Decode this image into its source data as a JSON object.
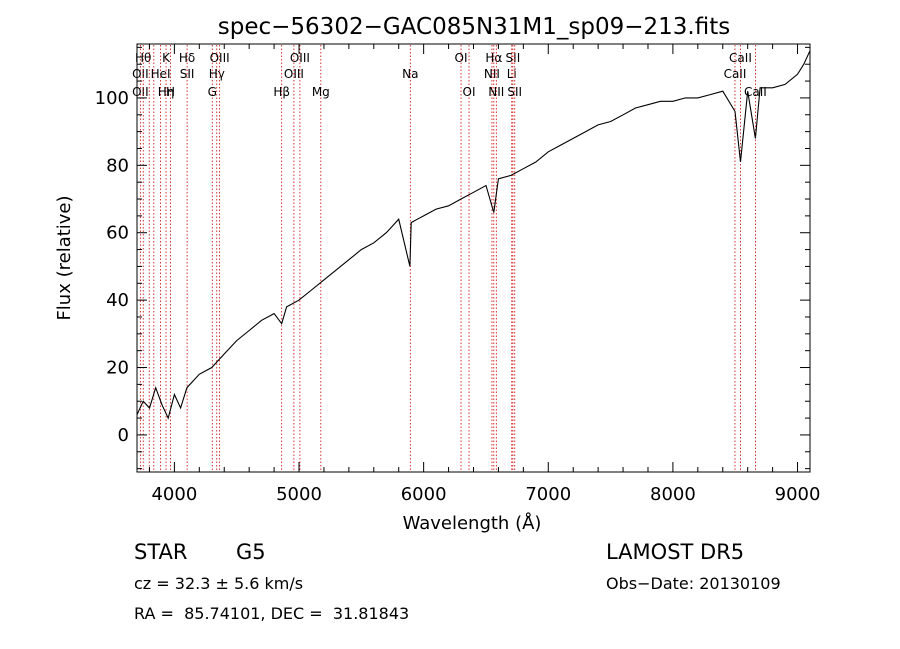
{
  "chart_data": {
    "type": "line",
    "title": "spec−56302−GAC085N31M1_sp09−213.fits",
    "xlabel": "Wavelength (Å)",
    "ylabel": "Flux (relative)",
    "xlim": [
      3700,
      9100
    ],
    "ylim": [
      -11,
      116
    ],
    "xticks": [
      4000,
      5000,
      6000,
      7000,
      8000,
      9000
    ],
    "yticks": [
      0,
      20,
      40,
      60,
      80,
      100
    ],
    "grid": false,
    "legend": "none",
    "line_color": "#000000",
    "marker_color": "#cc0000",
    "series": [
      {
        "name": "",
        "x": [
          3700,
          3750,
          3800,
          3850,
          3900,
          3950,
          4000,
          4050,
          4100,
          4150,
          4200,
          4250,
          4300,
          4350,
          4400,
          4500,
          4600,
          4700,
          4800,
          4861,
          4900,
          5000,
          5100,
          5200,
          5300,
          5400,
          5500,
          5600,
          5700,
          5750,
          5800,
          5890,
          5900,
          5950,
          6000,
          6100,
          6200,
          6300,
          6400,
          6500,
          6563,
          6600,
          6700,
          6800,
          6900,
          7000,
          7100,
          7200,
          7300,
          7400,
          7500,
          7600,
          7700,
          7800,
          7900,
          8000,
          8100,
          8200,
          8300,
          8400,
          8498,
          8542,
          8600,
          8662,
          8700,
          8800,
          8900,
          9000,
          9050,
          9100
        ],
        "y": [
          6,
          10,
          8,
          14,
          9,
          5,
          12,
          8,
          14,
          16,
          18,
          19,
          20,
          22,
          24,
          28,
          31,
          34,
          36,
          33,
          38,
          40,
          43,
          46,
          49,
          52,
          55,
          57,
          60,
          62,
          64,
          50,
          63,
          64,
          65,
          67,
          68,
          70,
          72,
          74,
          66,
          76,
          77,
          79,
          81,
          84,
          86,
          88,
          90,
          92,
          93,
          95,
          97,
          98,
          99,
          99,
          100,
          100,
          101,
          102,
          96,
          81,
          102,
          88,
          103,
          103,
          104,
          107,
          110,
          114
        ]
      }
    ],
    "lines": [
      {
        "wl": 3727,
        "labels": [
          {
            "text": "OII",
            "row": 2
          },
          {
            "text": "OII",
            "row": 3
          }
        ]
      },
      {
        "wl": 3750,
        "labels": [
          {
            "text": "Hθ",
            "row": 1
          }
        ]
      },
      {
        "wl": 3798,
        "labels": []
      },
      {
        "wl": 3835,
        "labels": []
      },
      {
        "wl": 3889,
        "labels": [
          {
            "text": "HeI",
            "row": 2
          }
        ]
      },
      {
        "wl": 3933,
        "labels": [
          {
            "text": "K",
            "row": 1
          },
          {
            "text": "Hη",
            "row": 3
          }
        ]
      },
      {
        "wl": 3969,
        "labels": [
          {
            "text": "H",
            "row": 3
          }
        ]
      },
      {
        "wl": 4102,
        "labels": [
          {
            "text": "Hδ",
            "row": 1
          },
          {
            "text": "SII",
            "row": 2
          }
        ]
      },
      {
        "wl": 4304,
        "labels": [
          {
            "text": "G",
            "row": 3
          }
        ]
      },
      {
        "wl": 4340,
        "labels": [
          {
            "text": "Hγ",
            "row": 2
          }
        ]
      },
      {
        "wl": 4363,
        "labels": [
          {
            "text": "OIII",
            "row": 1
          }
        ]
      },
      {
        "wl": 4861,
        "labels": [
          {
            "text": "Hβ",
            "row": 3
          }
        ]
      },
      {
        "wl": 4959,
        "labels": [
          {
            "text": "OIII",
            "row": 2
          }
        ]
      },
      {
        "wl": 5007,
        "labels": [
          {
            "text": "OIII",
            "row": 1
          }
        ]
      },
      {
        "wl": 5175,
        "labels": [
          {
            "text": "Mg",
            "row": 3
          }
        ]
      },
      {
        "wl": 5893,
        "labels": [
          {
            "text": "Na",
            "row": 2
          }
        ]
      },
      {
        "wl": 6300,
        "labels": [
          {
            "text": "OI",
            "row": 1
          }
        ]
      },
      {
        "wl": 6364,
        "labels": [
          {
            "text": "OI",
            "row": 3
          }
        ]
      },
      {
        "wl": 6548,
        "labels": [
          {
            "text": "NII",
            "row": 2
          }
        ]
      },
      {
        "wl": 6563,
        "labels": [
          {
            "text": "Hα",
            "row": 1
          }
        ]
      },
      {
        "wl": 6583,
        "labels": [
          {
            "text": "NII",
            "row": 3
          }
        ]
      },
      {
        "wl": 6707,
        "labels": [
          {
            "text": "Li",
            "row": 2
          }
        ]
      },
      {
        "wl": 6716,
        "labels": [
          {
            "text": "SII",
            "row": 1
          }
        ]
      },
      {
        "wl": 6731,
        "labels": [
          {
            "text": "SII",
            "row": 3
          }
        ]
      },
      {
        "wl": 8498,
        "labels": [
          {
            "text": "CaII",
            "row": 2
          }
        ]
      },
      {
        "wl": 8542,
        "labels": [
          {
            "text": "CaII",
            "row": 1
          }
        ]
      },
      {
        "wl": 8662,
        "labels": [
          {
            "text": "CaII",
            "row": 3
          }
        ]
      }
    ]
  },
  "footer": {
    "object_class": "STAR",
    "subclass": "G5",
    "survey": "LAMOST DR5",
    "cz": "cz = 32.3 ± 5.6 km/s",
    "obs_date": "Obs−Date: 20130109",
    "coords": "RA =  85.74101, DEC =  31.81843"
  }
}
